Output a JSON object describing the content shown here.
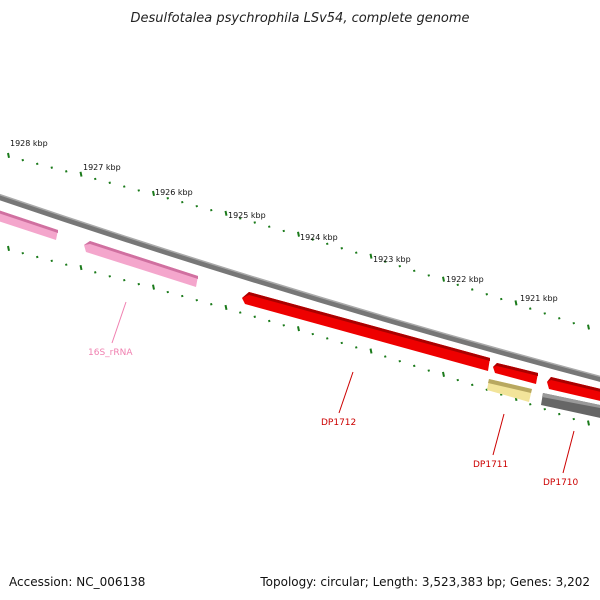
{
  "title": "Desulfotalea psychrophila LSv54, complete genome",
  "accession": "Accession: NC_006138",
  "topology": "Topology: circular; Length: 3,523,383 bp; Genes: 3,202",
  "scale_marks": [
    "1928 kbp",
    "1927 kbp",
    "1926 kbp",
    "1925 kbp",
    "1924 kbp",
    "1923 kbp",
    "1922 kbp",
    "1921 kbp"
  ],
  "features": [
    {
      "label": "",
      "color": "#f0a0c8",
      "kind": "rRNA"
    },
    {
      "label": "16S_rRNA",
      "color": "#f0a0c8",
      "kind": "rRNA"
    },
    {
      "label": "DP1712",
      "color": "#ee0000",
      "kind": "gene"
    },
    {
      "label": "DP1711",
      "color": "#f0e08c",
      "kind": "gene"
    },
    {
      "label": "",
      "color": "#ee0000",
      "kind": "gene"
    },
    {
      "label": "",
      "color": "#ee0000",
      "kind": "gene"
    },
    {
      "label": "DP1710",
      "color": "#777777",
      "kind": "gene"
    }
  ],
  "colors": {
    "backbone": "#888888",
    "tick": "#1a7a1a",
    "label_pink": "#f080b0",
    "label_red": "#cc0000"
  }
}
